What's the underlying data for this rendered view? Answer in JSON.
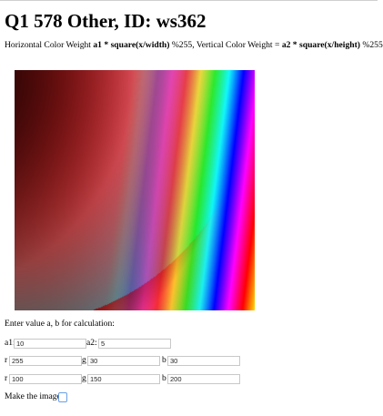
{
  "page": {
    "title": "Q1 578 Other, ID: ws362",
    "description": {
      "part1": "Horizontal Color Weight ",
      "formula1": "a1 * square(x/width)",
      "part2": " %255, Vertical Color Weight = ",
      "formula2": "a2 * square(x/height)",
      "part3": " %255"
    }
  },
  "form": {
    "prompt": "Enter value a, b for calculation:",
    "a1": {
      "label": "a1:",
      "value": "10"
    },
    "a2": {
      "label": "a2:",
      "value": "5"
    },
    "r1": {
      "label": "r",
      "value": "255"
    },
    "g1": {
      "label": "g",
      "value": "30"
    },
    "b1": {
      "label": "b",
      "value": "30"
    },
    "r2": {
      "label": "r",
      "value": "100"
    },
    "g2": {
      "label": "g",
      "value": "150"
    },
    "b2": {
      "label": "b",
      "value": "200"
    },
    "make_label": "Make the image"
  },
  "colors": {
    "field_border": "#c8c8c8",
    "checkbox_border": "#6aa0e6"
  }
}
